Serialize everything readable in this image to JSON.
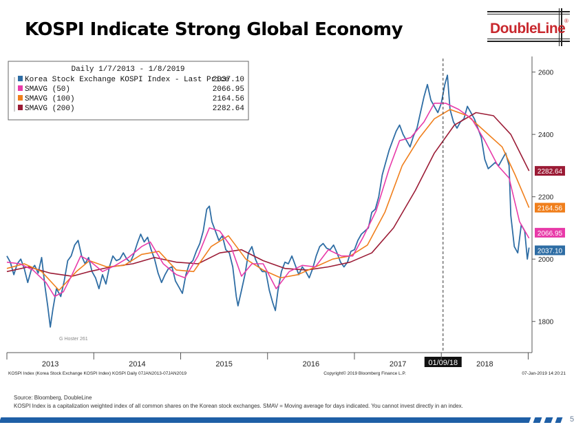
{
  "slide": {
    "title": "KOSPI Indicate Strong Global Economy",
    "brand": "DoubleLine",
    "brand_mark": "®",
    "page_number": "5"
  },
  "footer": {
    "source": "Source:  Bloomberg, DoubleLine",
    "description": "KOSPI Index is a capitalization weighted index of all common shares on the Korean stock exchanges. SMAV = Moving average for days indicated.  You cannot invest directly in an index."
  },
  "colors": {
    "kospi": "#2e6da4",
    "sma50": "#e83aa8",
    "sma100": "#f07f1c",
    "sma200": "#9b1b35",
    "brand": "#c8272d"
  },
  "chart_data": {
    "type": "line",
    "title": "Daily 1/7/2013 - 1/8/2019",
    "xlim": [
      2013.0,
      2019.02
    ],
    "ylim": [
      1700,
      2650
    ],
    "y_ticks": [
      1800,
      2000,
      2200,
      2400,
      2600
    ],
    "x_tick_labels": [
      {
        "label": "2013",
        "x": 2013.5
      },
      {
        "label": "2014",
        "x": 2014.5
      },
      {
        "label": "2015",
        "x": 2015.5
      },
      {
        "label": "2016",
        "x": 2016.5
      },
      {
        "label": "2017",
        "x": 2017.5
      },
      {
        "label": "2018",
        "x": 2018.5
      }
    ],
    "vline": {
      "x": 2018.02,
      "label": "01/09/18"
    },
    "footer_left": "KOSPI Index (Korea Stock Exchange KOSPI Index) KOSPI  Daily 07JAN2013-07JAN2019",
    "footer_center": "Copyright© 2019 Bloomberg Finance L.P.",
    "footer_right": "07-Jan-2019 14:20:21",
    "watermark": "G Hoster 261",
    "series": [
      {
        "name": "Korea Stock Exchange KOSPI Index - Last Price",
        "last": "2037.10",
        "label": "2037.10",
        "color": "#2e6da4",
        "points": [
          [
            2013.0,
            2010
          ],
          [
            2013.04,
            1990
          ],
          [
            2013.08,
            1950
          ],
          [
            2013.12,
            1985
          ],
          [
            2013.16,
            2000
          ],
          [
            2013.2,
            1970
          ],
          [
            2013.24,
            1925
          ],
          [
            2013.28,
            1965
          ],
          [
            2013.32,
            1980
          ],
          [
            2013.36,
            1955
          ],
          [
            2013.4,
            2005
          ],
          [
            2013.44,
            1910
          ],
          [
            2013.47,
            1850
          ],
          [
            2013.5,
            1782
          ],
          [
            2013.53,
            1840
          ],
          [
            2013.57,
            1905
          ],
          [
            2013.62,
            1880
          ],
          [
            2013.66,
            1930
          ],
          [
            2013.7,
            1995
          ],
          [
            2013.74,
            2010
          ],
          [
            2013.78,
            2045
          ],
          [
            2013.82,
            2060
          ],
          [
            2013.86,
            2010
          ],
          [
            2013.9,
            1985
          ],
          [
            2013.94,
            2005
          ],
          [
            2013.98,
            1960
          ],
          [
            2014.02,
            1940
          ],
          [
            2014.06,
            1905
          ],
          [
            2014.1,
            1950
          ],
          [
            2014.14,
            1920
          ],
          [
            2014.18,
            1975
          ],
          [
            2014.22,
            2010
          ],
          [
            2014.26,
            1995
          ],
          [
            2014.3,
            2000
          ],
          [
            2014.34,
            2020
          ],
          [
            2014.38,
            2000
          ],
          [
            2014.42,
            1990
          ],
          [
            2014.46,
            2015
          ],
          [
            2014.5,
            2050
          ],
          [
            2014.54,
            2080
          ],
          [
            2014.58,
            2055
          ],
          [
            2014.62,
            2070
          ],
          [
            2014.66,
            2030
          ],
          [
            2014.7,
            2000
          ],
          [
            2014.74,
            1955
          ],
          [
            2014.78,
            1925
          ],
          [
            2014.82,
            1950
          ],
          [
            2014.86,
            1970
          ],
          [
            2014.9,
            1975
          ],
          [
            2014.94,
            1930
          ],
          [
            2014.98,
            1910
          ],
          [
            2015.02,
            1890
          ],
          [
            2015.06,
            1950
          ],
          [
            2015.1,
            1985
          ],
          [
            2015.14,
            1995
          ],
          [
            2015.18,
            2025
          ],
          [
            2015.22,
            2050
          ],
          [
            2015.26,
            2090
          ],
          [
            2015.3,
            2160
          ],
          [
            2015.33,
            2170
          ],
          [
            2015.36,
            2120
          ],
          [
            2015.4,
            2090
          ],
          [
            2015.44,
            2060
          ],
          [
            2015.48,
            2075
          ],
          [
            2015.52,
            2030
          ],
          [
            2015.56,
            2020
          ],
          [
            2015.6,
            1975
          ],
          [
            2015.64,
            1880
          ],
          [
            2015.66,
            1850
          ],
          [
            2015.7,
            1900
          ],
          [
            2015.74,
            1950
          ],
          [
            2015.78,
            2020
          ],
          [
            2015.82,
            2040
          ],
          [
            2015.86,
            2000
          ],
          [
            2015.9,
            1975
          ],
          [
            2015.94,
            1960
          ],
          [
            2015.98,
            1960
          ],
          [
            2016.02,
            1900
          ],
          [
            2016.06,
            1860
          ],
          [
            2016.09,
            1835
          ],
          [
            2016.12,
            1900
          ],
          [
            2016.16,
            1960
          ],
          [
            2016.2,
            1990
          ],
          [
            2016.24,
            1985
          ],
          [
            2016.28,
            2010
          ],
          [
            2016.32,
            1980
          ],
          [
            2016.36,
            1950
          ],
          [
            2016.4,
            1975
          ],
          [
            2016.44,
            1960
          ],
          [
            2016.48,
            1940
          ],
          [
            2016.52,
            1970
          ],
          [
            2016.56,
            2010
          ],
          [
            2016.6,
            2040
          ],
          [
            2016.64,
            2050
          ],
          [
            2016.68,
            2035
          ],
          [
            2016.72,
            2030
          ],
          [
            2016.76,
            2045
          ],
          [
            2016.8,
            2020
          ],
          [
            2016.84,
            1990
          ],
          [
            2016.88,
            1975
          ],
          [
            2016.92,
            1990
          ],
          [
            2016.96,
            2025
          ],
          [
            2017.0,
            2030
          ],
          [
            2017.04,
            2060
          ],
          [
            2017.08,
            2080
          ],
          [
            2017.12,
            2090
          ],
          [
            2017.16,
            2100
          ],
          [
            2017.2,
            2150
          ],
          [
            2017.24,
            2160
          ],
          [
            2017.28,
            2200
          ],
          [
            2017.32,
            2270
          ],
          [
            2017.36,
            2310
          ],
          [
            2017.4,
            2350
          ],
          [
            2017.44,
            2380
          ],
          [
            2017.48,
            2410
          ],
          [
            2017.52,
            2430
          ],
          [
            2017.56,
            2400
          ],
          [
            2017.6,
            2380
          ],
          [
            2017.64,
            2360
          ],
          [
            2017.68,
            2395
          ],
          [
            2017.72,
            2420
          ],
          [
            2017.76,
            2470
          ],
          [
            2017.8,
            2520
          ],
          [
            2017.84,
            2560
          ],
          [
            2017.88,
            2510
          ],
          [
            2017.92,
            2490
          ],
          [
            2017.96,
            2470
          ],
          [
            2018.0,
            2500
          ],
          [
            2018.04,
            2560
          ],
          [
            2018.07,
            2590
          ],
          [
            2018.1,
            2480
          ],
          [
            2018.14,
            2440
          ],
          [
            2018.18,
            2420
          ],
          [
            2018.22,
            2440
          ],
          [
            2018.26,
            2450
          ],
          [
            2018.3,
            2490
          ],
          [
            2018.34,
            2470
          ],
          [
            2018.38,
            2450
          ],
          [
            2018.42,
            2420
          ],
          [
            2018.46,
            2390
          ],
          [
            2018.5,
            2320
          ],
          [
            2018.54,
            2290
          ],
          [
            2018.58,
            2300
          ],
          [
            2018.62,
            2310
          ],
          [
            2018.66,
            2300
          ],
          [
            2018.7,
            2320
          ],
          [
            2018.74,
            2340
          ],
          [
            2018.78,
            2300
          ],
          [
            2018.8,
            2140
          ],
          [
            2018.84,
            2040
          ],
          [
            2018.88,
            2020
          ],
          [
            2018.92,
            2110
          ],
          [
            2018.96,
            2090
          ],
          [
            2018.99,
            2000
          ],
          [
            2019.01,
            2037
          ]
        ]
      },
      {
        "name": "SMAVG (50)",
        "last": "2066.95",
        "label": "2066.95",
        "color": "#e83aa8",
        "points": [
          [
            2013.0,
            1990
          ],
          [
            2013.15,
            1985
          ],
          [
            2013.3,
            1965
          ],
          [
            2013.45,
            1925
          ],
          [
            2013.55,
            1880
          ],
          [
            2013.65,
            1895
          ],
          [
            2013.75,
            1950
          ],
          [
            2013.85,
            2010
          ],
          [
            2013.95,
            1995
          ],
          [
            2014.1,
            1960
          ],
          [
            2014.25,
            1980
          ],
          [
            2014.4,
            2005
          ],
          [
            2014.55,
            2040
          ],
          [
            2014.65,
            2055
          ],
          [
            2014.8,
            1985
          ],
          [
            2014.95,
            1950
          ],
          [
            2015.05,
            1940
          ],
          [
            2015.2,
            2010
          ],
          [
            2015.33,
            2100
          ],
          [
            2015.45,
            2090
          ],
          [
            2015.58,
            2040
          ],
          [
            2015.7,
            1945
          ],
          [
            2015.82,
            1985
          ],
          [
            2015.95,
            1985
          ],
          [
            2016.1,
            1905
          ],
          [
            2016.25,
            1960
          ],
          [
            2016.4,
            1980
          ],
          [
            2016.55,
            1975
          ],
          [
            2016.7,
            2030
          ],
          [
            2016.85,
            2010
          ],
          [
            2016.98,
            2010
          ],
          [
            2017.1,
            2070
          ],
          [
            2017.25,
            2155
          ],
          [
            2017.4,
            2290
          ],
          [
            2017.52,
            2380
          ],
          [
            2017.65,
            2390
          ],
          [
            2017.8,
            2440
          ],
          [
            2017.92,
            2500
          ],
          [
            2018.05,
            2500
          ],
          [
            2018.2,
            2480
          ],
          [
            2018.35,
            2450
          ],
          [
            2018.5,
            2380
          ],
          [
            2018.65,
            2300
          ],
          [
            2018.78,
            2260
          ],
          [
            2018.9,
            2120
          ],
          [
            2019.01,
            2067
          ]
        ]
      },
      {
        "name": "SMAVG (100)",
        "last": "2164.56",
        "label": "2164.56",
        "color": "#f07f1c",
        "points": [
          [
            2013.0,
            1970
          ],
          [
            2013.2,
            1985
          ],
          [
            2013.4,
            1960
          ],
          [
            2013.6,
            1900
          ],
          [
            2013.8,
            1960
          ],
          [
            2013.95,
            1995
          ],
          [
            2014.15,
            1975
          ],
          [
            2014.35,
            1980
          ],
          [
            2014.55,
            2015
          ],
          [
            2014.75,
            2025
          ],
          [
            2014.95,
            1965
          ],
          [
            2015.15,
            1960
          ],
          [
            2015.35,
            2040
          ],
          [
            2015.55,
            2075
          ],
          [
            2015.75,
            2000
          ],
          [
            2015.95,
            1965
          ],
          [
            2016.15,
            1940
          ],
          [
            2016.35,
            1950
          ],
          [
            2016.55,
            1975
          ],
          [
            2016.75,
            2000
          ],
          [
            2016.95,
            2010
          ],
          [
            2017.15,
            2045
          ],
          [
            2017.35,
            2150
          ],
          [
            2017.55,
            2300
          ],
          [
            2017.75,
            2390
          ],
          [
            2017.92,
            2450
          ],
          [
            2018.1,
            2480
          ],
          [
            2018.3,
            2460
          ],
          [
            2018.5,
            2410
          ],
          [
            2018.7,
            2360
          ],
          [
            2018.85,
            2270
          ],
          [
            2019.01,
            2165
          ]
        ]
      },
      {
        "name": "SMAVG (200)",
        "last": "2282.64",
        "label": "2282.64",
        "color": "#9b1b35",
        "points": [
          [
            2013.0,
            1960
          ],
          [
            2013.25,
            1975
          ],
          [
            2013.5,
            1955
          ],
          [
            2013.75,
            1945
          ],
          [
            2013.95,
            1960
          ],
          [
            2014.2,
            1975
          ],
          [
            2014.45,
            1985
          ],
          [
            2014.7,
            2005
          ],
          [
            2014.95,
            1990
          ],
          [
            2015.2,
            1985
          ],
          [
            2015.45,
            2020
          ],
          [
            2015.7,
            2030
          ],
          [
            2015.95,
            1995
          ],
          [
            2016.2,
            1970
          ],
          [
            2016.45,
            1965
          ],
          [
            2016.7,
            1975
          ],
          [
            2016.95,
            1990
          ],
          [
            2017.2,
            2020
          ],
          [
            2017.45,
            2100
          ],
          [
            2017.7,
            2220
          ],
          [
            2017.92,
            2340
          ],
          [
            2018.15,
            2430
          ],
          [
            2018.4,
            2470
          ],
          [
            2018.6,
            2460
          ],
          [
            2018.8,
            2400
          ],
          [
            2019.01,
            2283
          ]
        ]
      }
    ]
  }
}
